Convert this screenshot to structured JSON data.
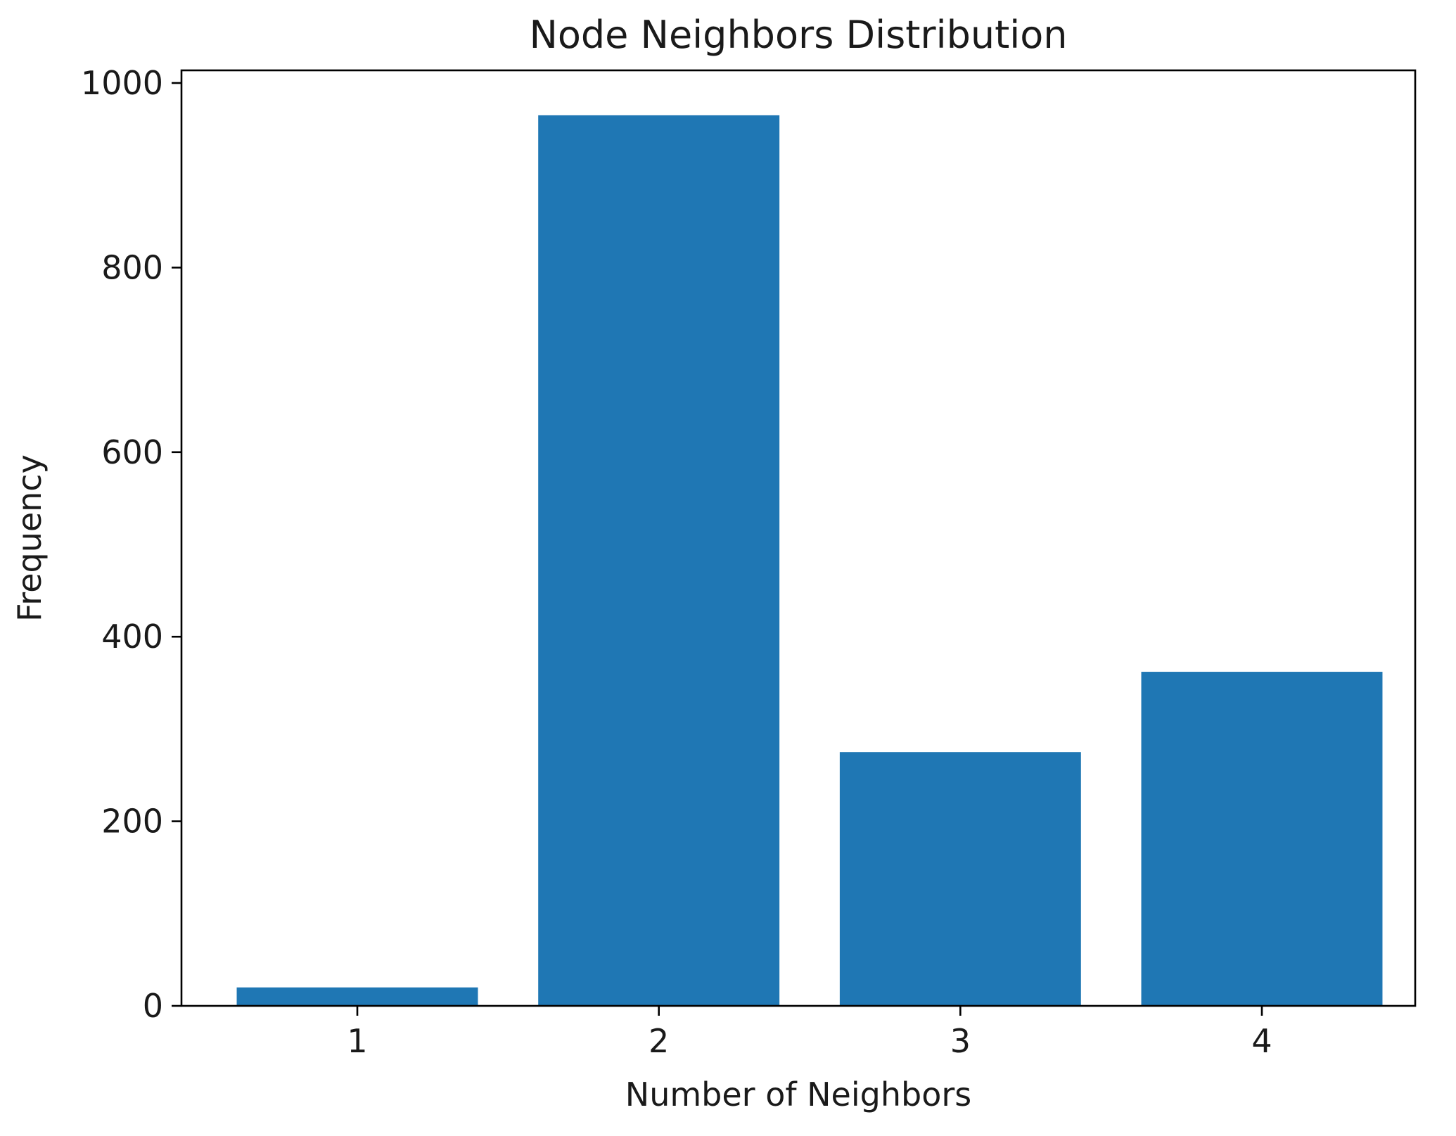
{
  "chart_data": {
    "type": "bar",
    "title": "Node Neighbors Distribution",
    "xlabel": "Number of Neighbors",
    "ylabel": "Frequency",
    "categories": [
      "1",
      "2",
      "3",
      "4"
    ],
    "values": [
      20,
      965,
      275,
      362
    ],
    "ylim": [
      0,
      1000
    ],
    "yticks": [
      "0",
      "200",
      "400",
      "600",
      "800",
      "1000"
    ],
    "bar_color": "#1f77b4",
    "grid": false,
    "legend": "none"
  }
}
